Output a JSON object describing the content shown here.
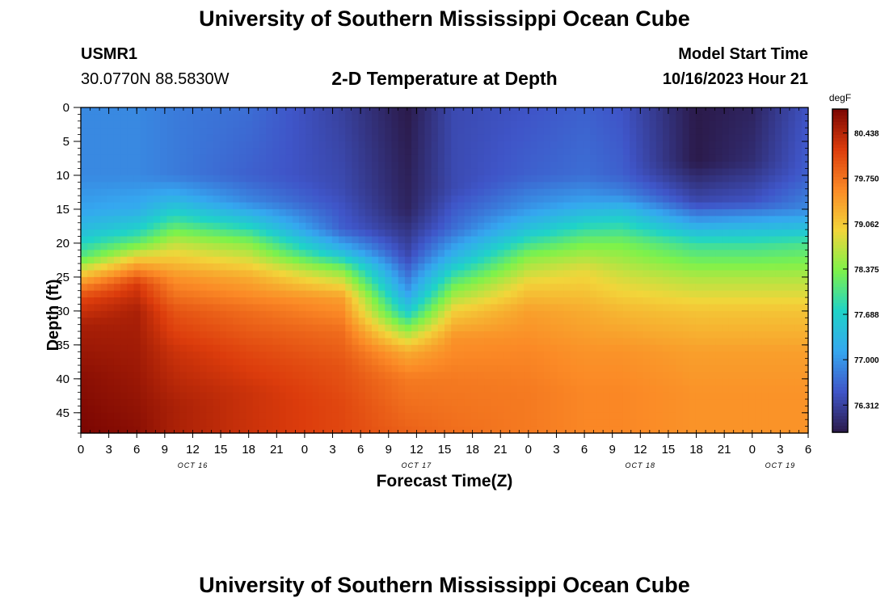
{
  "header": {
    "title": "University of Southern Mississippi Ocean Cube",
    "station": "USMR1",
    "coordinates": "30.0770N  88.5830W",
    "plot_title": "2-D Temperature at Depth",
    "model_label": "Model Start Time",
    "model_time": "10/16/2023 Hour 21"
  },
  "footer": {
    "title": "University of Southern Mississippi Ocean Cube"
  },
  "colors": {
    "ramp": [
      "#2b1a4a",
      "#3f55c8",
      "#35a7f0",
      "#1fd3c8",
      "#7ef24a",
      "#f2d53a",
      "#fb8a26",
      "#dc3c0c",
      "#7a0602"
    ]
  },
  "chart_data": {
    "type": "heatmap",
    "title": "2-D Temperature at Depth",
    "xlabel": "Forecast Time(Z)",
    "ylabel": "Depth (ft)",
    "xlim": [
      0,
      78
    ],
    "ylim": [
      0,
      48
    ],
    "x_tick_values": [
      0,
      3,
      6,
      9,
      12,
      15,
      18,
      21,
      24,
      27,
      30,
      33,
      36,
      39,
      42,
      45,
      48,
      51,
      54,
      57,
      60,
      63,
      66,
      69,
      72,
      75,
      78
    ],
    "x_tick_labels": [
      "0",
      "3",
      "6",
      "9",
      "12",
      "15",
      "18",
      "21",
      "0",
      "3",
      "6",
      "9",
      "12",
      "15",
      "18",
      "21",
      "0",
      "3",
      "6",
      "9",
      "12",
      "15",
      "18",
      "21",
      "0",
      "3",
      "6"
    ],
    "date_labels": [
      {
        "x": 12,
        "label": "OCT 16"
      },
      {
        "x": 36,
        "label": "OCT 17"
      },
      {
        "x": 60,
        "label": "OCT 18"
      },
      {
        "x": 75,
        "label": "OCT 19"
      }
    ],
    "y_ticks": [
      0,
      5,
      10,
      15,
      20,
      25,
      30,
      35,
      40,
      45
    ],
    "colorbar": {
      "unit": "degF",
      "min": 75.9,
      "max": 80.8,
      "ticks": [
        80.438,
        79.75,
        79.062,
        78.375,
        77.688,
        77.0,
        76.312
      ],
      "tick_labels": [
        "80.438",
        "79.750",
        "79.062",
        "78.375",
        "77.688",
        "77.000",
        "76.312"
      ]
    },
    "grid": false,
    "profiles": [
      {
        "hour": 0,
        "depth": [
          0,
          10,
          15,
          18,
          22,
          25,
          28,
          32,
          40,
          48
        ],
        "temp": [
          76.9,
          76.9,
          77.1,
          77.4,
          78.1,
          79.2,
          80.1,
          80.5,
          80.7,
          80.8
        ]
      },
      {
        "hour": 6,
        "depth": [
          0,
          10,
          15,
          18,
          20,
          23,
          26,
          30,
          40,
          48
        ],
        "temp": [
          76.9,
          76.9,
          77.2,
          77.7,
          78.2,
          79.3,
          80.2,
          80.5,
          80.6,
          80.7
        ]
      },
      {
        "hour": 10,
        "depth": [
          0,
          10,
          13,
          16,
          20,
          25,
          30,
          36,
          44,
          48
        ],
        "temp": [
          76.8,
          76.8,
          77.2,
          77.8,
          78.7,
          79.5,
          80.0,
          80.3,
          80.5,
          80.5
        ]
      },
      {
        "hour": 18,
        "depth": [
          0,
          10,
          14,
          17,
          20,
          25,
          30,
          36,
          42,
          48
        ],
        "temp": [
          76.7,
          76.6,
          76.9,
          77.6,
          78.4,
          79.3,
          79.8,
          80.1,
          80.3,
          80.3
        ]
      },
      {
        "hour": 28,
        "depth": [
          0,
          12,
          18,
          21,
          24,
          28,
          33,
          38,
          44,
          48
        ],
        "temp": [
          76.3,
          76.4,
          76.6,
          77.3,
          78.4,
          79.4,
          79.8,
          80.0,
          80.1,
          80.1
        ]
      },
      {
        "hour": 35,
        "depth": [
          0,
          15,
          22,
          27,
          30,
          33,
          36,
          40,
          48
        ],
        "temp": [
          75.9,
          76.0,
          76.4,
          77.0,
          77.6,
          78.5,
          79.3,
          79.7,
          79.9
        ]
      },
      {
        "hour": 40,
        "depth": [
          0,
          12,
          18,
          22,
          26,
          30,
          34,
          40,
          48
        ],
        "temp": [
          76.4,
          76.4,
          76.7,
          77.3,
          78.2,
          79.0,
          79.5,
          79.7,
          79.8
        ]
      },
      {
        "hour": 48,
        "depth": [
          0,
          10,
          15,
          18,
          22,
          26,
          30,
          36,
          42,
          48
        ],
        "temp": [
          76.5,
          76.6,
          77.0,
          77.5,
          78.4,
          79.0,
          79.4,
          79.6,
          79.7,
          79.7
        ]
      },
      {
        "hour": 54,
        "depth": [
          0,
          10,
          14,
          17,
          20,
          24,
          30,
          36,
          42,
          48
        ],
        "temp": [
          76.6,
          76.7,
          77.1,
          77.7,
          78.3,
          78.9,
          79.3,
          79.5,
          79.6,
          79.6
        ]
      },
      {
        "hour": 58,
        "depth": [
          0,
          10,
          13,
          16,
          20,
          25,
          30,
          36,
          42,
          48
        ],
        "temp": [
          76.5,
          76.6,
          76.9,
          77.6,
          78.3,
          78.8,
          79.2,
          79.5,
          79.6,
          79.6
        ]
      },
      {
        "hour": 66,
        "depth": [
          0,
          8,
          14,
          17,
          20,
          25,
          30,
          36,
          42,
          48
        ],
        "temp": [
          75.9,
          75.9,
          76.4,
          77.1,
          77.9,
          78.6,
          79.1,
          79.4,
          79.5,
          79.5
        ]
      },
      {
        "hour": 72,
        "depth": [
          0,
          8,
          14,
          17,
          20,
          25,
          30,
          36,
          42,
          48
        ],
        "temp": [
          76.0,
          76.1,
          76.5,
          77.2,
          77.9,
          78.6,
          79.1,
          79.4,
          79.5,
          79.5
        ]
      },
      {
        "hour": 78,
        "depth": [
          0,
          10,
          15,
          18,
          20,
          25,
          30,
          36,
          42,
          48
        ],
        "temp": [
          76.5,
          76.6,
          76.9,
          77.5,
          78.0,
          78.6,
          79.1,
          79.4,
          79.5,
          79.5
        ]
      }
    ]
  }
}
